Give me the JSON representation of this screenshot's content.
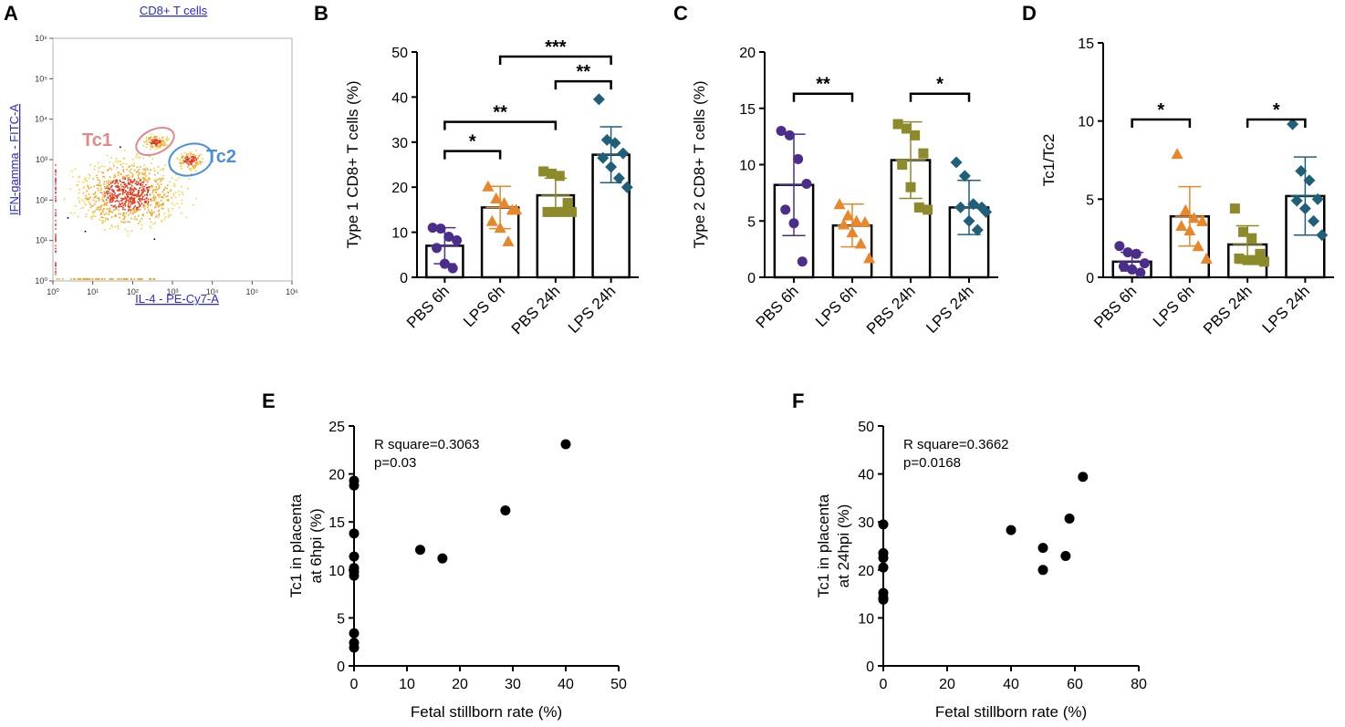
{
  "flow_panel": {
    "letter": "A",
    "title": "CD8+ T cells",
    "xlabel": "IL-4 - PE-Cy7-A",
    "ylabel": "IFN-gamma - FITC-A",
    "x_ticks": [
      "10⁰",
      "10¹",
      "10²",
      "10³",
      "10⁴",
      "10⁵",
      "10⁶"
    ],
    "y_ticks": [
      "10⁰",
      "10¹",
      "10²",
      "10³",
      "10⁴",
      "10⁵",
      "10⁶"
    ],
    "gates": [
      {
        "name": "Tc1",
        "color": "#e08a8a"
      },
      {
        "name": "Tc2",
        "color": "#4a90d9"
      }
    ]
  },
  "chart_data": [
    {
      "panel": "B",
      "type": "bar",
      "ylabel": "Type 1 CD8+ T cells (%)",
      "ylim": [
        0,
        50
      ],
      "yticks": [
        0,
        10,
        20,
        30,
        40,
        50
      ],
      "categories": [
        "PBS 6h",
        "LPS 6h",
        "PBS 24h",
        "LPS 24h"
      ],
      "colors": [
        "#4b2d8c",
        "#e8862a",
        "#8c8a2a",
        "#1f5f7a"
      ],
      "markers": [
        "circle",
        "triangle",
        "square",
        "diamond"
      ],
      "means": [
        7.0,
        15.5,
        18.2,
        27.2
      ],
      "sd": [
        4.0,
        4.7,
        3.8,
        6.2
      ],
      "points": [
        [
          11.0,
          10.8,
          9.0,
          8.2,
          6.5,
          3.0,
          2.0
        ],
        [
          20.2,
          17.5,
          16.5,
          15.0,
          12.5,
          11.0,
          8.0,
          15.0
        ],
        [
          23.5,
          23.0,
          22.5,
          16.5,
          14.5,
          14.5,
          14.5,
          14.5
        ],
        [
          39.5,
          30.5,
          29.8,
          27.5,
          26.5,
          24.5,
          22.0,
          20.0
        ]
      ],
      "comparisons": [
        {
          "from": 0,
          "to": 1,
          "label": "*",
          "y": 28
        },
        {
          "from": 0,
          "to": 2,
          "label": "**",
          "y": 34.5
        },
        {
          "from": 2,
          "to": 3,
          "label": "**",
          "y": 43.5
        },
        {
          "from": 1,
          "to": 3,
          "label": "***",
          "y": 49
        }
      ]
    },
    {
      "panel": "C",
      "type": "bar",
      "ylabel": "Type 2 CD8+ T cells (%)",
      "ylim": [
        0,
        20
      ],
      "yticks": [
        0,
        5,
        10,
        15,
        20
      ],
      "categories": [
        "PBS 6h",
        "LPS 6h",
        "PBS 24h",
        "LPS 24h"
      ],
      "colors": [
        "#4b2d8c",
        "#e8862a",
        "#8c8a2a",
        "#1f5f7a"
      ],
      "markers": [
        "circle",
        "triangle",
        "square",
        "diamond"
      ],
      "means": [
        8.2,
        4.6,
        10.4,
        6.2
      ],
      "sd": [
        4.5,
        1.9,
        3.4,
        2.4
      ],
      "points": [
        [
          13.0,
          12.6,
          10.5,
          8.3,
          6.0,
          4.8,
          1.4
        ],
        [
          6.5,
          5.5,
          5.0,
          4.9,
          4.7,
          4.0,
          3.0,
          1.7
        ],
        [
          13.6,
          13.2,
          12.6,
          11.0,
          10.0,
          8.0,
          6.2,
          6.0
        ],
        [
          10.2,
          9.0,
          6.5,
          6.2,
          6.2,
          5.0,
          4.2,
          5.8
        ]
      ],
      "comparisons": [
        {
          "from": 0,
          "to": 1,
          "label": "**",
          "y": 16.3
        },
        {
          "from": 2,
          "to": 3,
          "label": "*",
          "y": 16.3
        }
      ]
    },
    {
      "panel": "D",
      "type": "bar",
      "ylabel": "Tc1/Tc2",
      "ylim": [
        0,
        15
      ],
      "yticks": [
        0,
        5,
        10,
        15
      ],
      "categories": [
        "PBS 6h",
        "LPS 6h",
        "PBS 24h",
        "LPS 24h"
      ],
      "colors": [
        "#4b2d8c",
        "#e8862a",
        "#8c8a2a",
        "#1f5f7a"
      ],
      "markers": [
        "circle",
        "triangle",
        "square",
        "diamond"
      ],
      "means": [
        1.0,
        3.9,
        2.1,
        5.2
      ],
      "sd": [
        0.6,
        1.9,
        1.2,
        2.5
      ],
      "points": [
        [
          2.0,
          1.6,
          1.5,
          0.9,
          0.7,
          0.5,
          0.3
        ],
        [
          7.9,
          4.3,
          3.8,
          3.6,
          3.3,
          3.0,
          2.0,
          1.2
        ],
        [
          4.4,
          2.9,
          2.5,
          1.5,
          1.2,
          1.1,
          1.1,
          1.0
        ],
        [
          9.8,
          6.8,
          6.2,
          5.0,
          4.9,
          4.4,
          3.6,
          2.7
        ]
      ],
      "comparisons": [
        {
          "from": 0,
          "to": 1,
          "label": "*",
          "y": 10.1
        },
        {
          "from": 2,
          "to": 3,
          "label": "*",
          "y": 10.1
        }
      ]
    },
    {
      "panel": "E",
      "type": "scatter",
      "xlabel": "Fetal stillborn rate (%)",
      "ylabel_line1": "Tc1 in placenta",
      "ylabel_line2": "at 6hpi (%)",
      "xlim": [
        0,
        50
      ],
      "ylim": [
        0,
        25
      ],
      "xticks": [
        0,
        10,
        20,
        30,
        40,
        50
      ],
      "yticks": [
        0,
        5,
        10,
        15,
        20,
        25
      ],
      "annotation": [
        "R square=0.3063",
        "p=0.03"
      ],
      "points": [
        [
          0,
          19.3
        ],
        [
          0,
          18.8
        ],
        [
          0,
          13.8
        ],
        [
          0,
          11.4
        ],
        [
          0,
          10.2
        ],
        [
          0,
          9.8
        ],
        [
          0,
          9.4
        ],
        [
          0,
          3.4
        ],
        [
          0,
          2.4
        ],
        [
          0,
          1.9
        ],
        [
          12.5,
          12.1
        ],
        [
          16.7,
          11.2
        ],
        [
          28.6,
          16.2
        ],
        [
          40.0,
          23.1
        ]
      ]
    },
    {
      "panel": "F",
      "type": "scatter",
      "xlabel": "Fetal stillborn rate (%)",
      "ylabel_line1": "Tc1 in placenta",
      "ylabel_line2": "at 24hpi (%)",
      "xlim": [
        0,
        80
      ],
      "ylim": [
        0,
        50
      ],
      "xticks": [
        0,
        20,
        40,
        60,
        80
      ],
      "yticks": [
        0,
        10,
        20,
        30,
        40,
        50
      ],
      "annotation": [
        "R square=0.3662",
        "p=0.0168"
      ],
      "points": [
        [
          0,
          29.5
        ],
        [
          0,
          23.5
        ],
        [
          0,
          22.5
        ],
        [
          0,
          20.5
        ],
        [
          0,
          15.2
        ],
        [
          0,
          14.2
        ],
        [
          0,
          13.8
        ],
        [
          40.0,
          28.3
        ],
        [
          50.0,
          24.6
        ],
        [
          50.0,
          20.0
        ],
        [
          57.1,
          22.9
        ],
        [
          58.3,
          30.7
        ],
        [
          62.5,
          39.4
        ]
      ]
    }
  ]
}
